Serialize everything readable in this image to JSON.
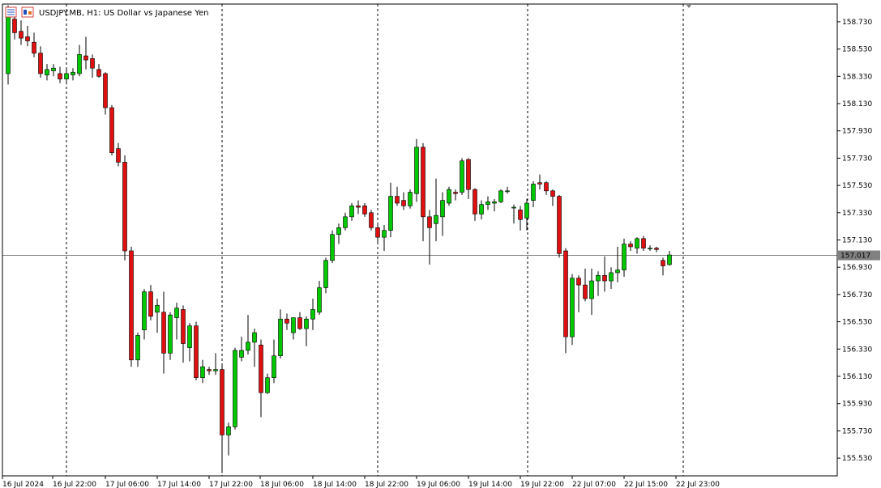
{
  "window": {
    "symbol": "USDJPY.MB",
    "timeframe": "H1:",
    "description": "US Dollar vs Japanese Yen",
    "icons": [
      "chart-list-icon",
      "chart-window-icon"
    ]
  },
  "colors": {
    "bull": "#00c800",
    "bear": "#e01010",
    "wick": "#000000",
    "grid": "#000000",
    "price_line": "#808080",
    "price_label_bg": "#808080",
    "price_label_text": "#ffffff"
  },
  "current_price": "157.017",
  "chart_data": {
    "type": "candlestick",
    "title": "USDJPY.MB, H1: US Dollar vs Japanese Yen",
    "y_ticks": [
      "158.730",
      "158.530",
      "158.330",
      "158.130",
      "157.930",
      "157.730",
      "157.530",
      "157.330",
      "157.130",
      "156.930",
      "156.730",
      "156.530",
      "156.330",
      "156.130",
      "155.930",
      "155.730",
      "155.530"
    ],
    "x_ticks": [
      "16 Jul 2024",
      "16 Jul 22:00",
      "17 Jul 06:00",
      "17 Jul 14:00",
      "17 Jul 22:00",
      "18 Jul 06:00",
      "18 Jul 14:00",
      "18 Jul 22:00",
      "19 Jul 06:00",
      "19 Jul 14:00",
      "19 Jul 22:00",
      "22 Jul 07:00",
      "22 Jul 15:00",
      "22 Jul 23:00"
    ],
    "period_separators": [
      "16 Jul 22:00",
      "17 Jul 22:00",
      "18 Jul 22:00",
      "19 Jul 22:00",
      "22 Jul 23:00"
    ],
    "ylim": [
      155.4,
      158.88
    ],
    "grid": false,
    "candles": [
      {
        "o": 158.35,
        "h": 158.85,
        "l": 158.27,
        "c": 158.77
      },
      {
        "o": 158.75,
        "h": 158.82,
        "l": 158.6,
        "c": 158.65
      },
      {
        "o": 158.66,
        "h": 158.74,
        "l": 158.56,
        "c": 158.61
      },
      {
        "o": 158.62,
        "h": 158.7,
        "l": 158.55,
        "c": 158.59
      },
      {
        "o": 158.58,
        "h": 158.65,
        "l": 158.47,
        "c": 158.5
      },
      {
        "o": 158.5,
        "h": 158.55,
        "l": 158.32,
        "c": 158.35
      },
      {
        "o": 158.34,
        "h": 158.42,
        "l": 158.3,
        "c": 158.38
      },
      {
        "o": 158.37,
        "h": 158.42,
        "l": 158.33,
        "c": 158.39
      },
      {
        "o": 158.35,
        "h": 158.4,
        "l": 158.28,
        "c": 158.31
      },
      {
        "o": 158.31,
        "h": 158.38,
        "l": 158.27,
        "c": 158.35
      },
      {
        "o": 158.34,
        "h": 158.39,
        "l": 158.3,
        "c": 158.36
      },
      {
        "o": 158.35,
        "h": 158.56,
        "l": 158.33,
        "c": 158.49
      },
      {
        "o": 158.48,
        "h": 158.62,
        "l": 158.38,
        "c": 158.45
      },
      {
        "o": 158.46,
        "h": 158.49,
        "l": 158.32,
        "c": 158.39
      },
      {
        "o": 158.38,
        "h": 158.42,
        "l": 158.32,
        "c": 158.33
      },
      {
        "o": 158.35,
        "h": 158.36,
        "l": 158.05,
        "c": 158.1
      },
      {
        "o": 158.1,
        "h": 158.12,
        "l": 157.75,
        "c": 157.77
      },
      {
        "o": 157.8,
        "h": 157.84,
        "l": 157.67,
        "c": 157.7
      },
      {
        "o": 157.7,
        "h": 157.75,
        "l": 156.98,
        "c": 157.05
      },
      {
        "o": 157.05,
        "h": 157.08,
        "l": 156.2,
        "c": 156.25
      },
      {
        "o": 156.25,
        "h": 156.45,
        "l": 156.2,
        "c": 156.43
      },
      {
        "o": 156.47,
        "h": 156.77,
        "l": 156.4,
        "c": 156.75
      },
      {
        "o": 156.75,
        "h": 156.8,
        "l": 156.54,
        "c": 156.57
      },
      {
        "o": 156.6,
        "h": 156.7,
        "l": 156.45,
        "c": 156.65
      },
      {
        "o": 156.6,
        "h": 156.75,
        "l": 156.15,
        "c": 156.3
      },
      {
        "o": 156.3,
        "h": 156.6,
        "l": 156.25,
        "c": 156.58
      },
      {
        "o": 156.56,
        "h": 156.67,
        "l": 156.4,
        "c": 156.63
      },
      {
        "o": 156.62,
        "h": 156.65,
        "l": 156.23,
        "c": 156.37
      },
      {
        "o": 156.34,
        "h": 156.52,
        "l": 156.24,
        "c": 156.5
      },
      {
        "o": 156.5,
        "h": 156.53,
        "l": 156.1,
        "c": 156.12
      },
      {
        "o": 156.12,
        "h": 156.25,
        "l": 156.08,
        "c": 156.2
      },
      {
        "o": 156.18,
        "h": 156.2,
        "l": 156.14,
        "c": 156.17
      },
      {
        "o": 156.17,
        "h": 156.3,
        "l": 156.14,
        "c": 156.18
      },
      {
        "o": 156.18,
        "h": 156.21,
        "l": 155.42,
        "c": 155.7
      },
      {
        "o": 155.7,
        "h": 155.79,
        "l": 155.55,
        "c": 155.76
      },
      {
        "o": 155.76,
        "h": 156.34,
        "l": 155.74,
        "c": 156.32
      },
      {
        "o": 156.27,
        "h": 156.42,
        "l": 156.24,
        "c": 156.32
      },
      {
        "o": 156.32,
        "h": 156.58,
        "l": 156.29,
        "c": 156.38
      },
      {
        "o": 156.38,
        "h": 156.48,
        "l": 156.2,
        "c": 156.45
      },
      {
        "o": 156.36,
        "h": 156.4,
        "l": 155.83,
        "c": 156.01
      },
      {
        "o": 156.01,
        "h": 156.15,
        "l": 156.0,
        "c": 156.12
      },
      {
        "o": 156.12,
        "h": 156.4,
        "l": 156.08,
        "c": 156.28
      },
      {
        "o": 156.28,
        "h": 156.62,
        "l": 156.26,
        "c": 156.55
      },
      {
        "o": 156.55,
        "h": 156.59,
        "l": 156.47,
        "c": 156.52
      },
      {
        "o": 156.45,
        "h": 156.56,
        "l": 156.4,
        "c": 156.56
      },
      {
        "o": 156.56,
        "h": 156.6,
        "l": 156.47,
        "c": 156.48
      },
      {
        "o": 156.48,
        "h": 156.57,
        "l": 156.35,
        "c": 156.55
      },
      {
        "o": 156.55,
        "h": 156.7,
        "l": 156.47,
        "c": 156.62
      },
      {
        "o": 156.6,
        "h": 156.83,
        "l": 156.58,
        "c": 156.78
      },
      {
        "o": 156.78,
        "h": 157.0,
        "l": 156.74,
        "c": 156.98
      },
      {
        "o": 156.98,
        "h": 157.2,
        "l": 156.96,
        "c": 157.17
      },
      {
        "o": 157.17,
        "h": 157.25,
        "l": 157.1,
        "c": 157.22
      },
      {
        "o": 157.22,
        "h": 157.33,
        "l": 157.2,
        "c": 157.3
      },
      {
        "o": 157.3,
        "h": 157.4,
        "l": 157.27,
        "c": 157.38
      },
      {
        "o": 157.38,
        "h": 157.42,
        "l": 157.32,
        "c": 157.37
      },
      {
        "o": 157.38,
        "h": 157.4,
        "l": 157.3,
        "c": 157.32
      },
      {
        "o": 157.33,
        "h": 157.35,
        "l": 157.2,
        "c": 157.22
      },
      {
        "o": 157.22,
        "h": 157.24,
        "l": 157.1,
        "c": 157.15
      },
      {
        "o": 157.15,
        "h": 157.24,
        "l": 157.05,
        "c": 157.2
      },
      {
        "o": 157.2,
        "h": 157.55,
        "l": 157.15,
        "c": 157.45
      },
      {
        "o": 157.45,
        "h": 157.52,
        "l": 157.38,
        "c": 157.4
      },
      {
        "o": 157.42,
        "h": 157.48,
        "l": 157.35,
        "c": 157.38
      },
      {
        "o": 157.38,
        "h": 157.5,
        "l": 157.36,
        "c": 157.48
      },
      {
        "o": 157.47,
        "h": 157.87,
        "l": 157.41,
        "c": 157.81
      },
      {
        "o": 157.81,
        "h": 157.84,
        "l": 157.12,
        "c": 157.3
      },
      {
        "o": 157.3,
        "h": 157.35,
        "l": 156.95,
        "c": 157.22
      },
      {
        "o": 157.25,
        "h": 157.58,
        "l": 157.12,
        "c": 157.31
      },
      {
        "o": 157.3,
        "h": 157.48,
        "l": 157.16,
        "c": 157.42
      },
      {
        "o": 157.4,
        "h": 157.52,
        "l": 157.38,
        "c": 157.5
      },
      {
        "o": 157.48,
        "h": 157.5,
        "l": 157.42,
        "c": 157.47
      },
      {
        "o": 157.48,
        "h": 157.73,
        "l": 157.46,
        "c": 157.71
      },
      {
        "o": 157.72,
        "h": 157.73,
        "l": 157.43,
        "c": 157.5
      },
      {
        "o": 157.5,
        "h": 157.51,
        "l": 157.27,
        "c": 157.32
      },
      {
        "o": 157.32,
        "h": 157.42,
        "l": 157.28,
        "c": 157.39
      },
      {
        "o": 157.39,
        "h": 157.45,
        "l": 157.35,
        "c": 157.41
      },
      {
        "o": 157.4,
        "h": 157.43,
        "l": 157.34,
        "c": 157.41
      },
      {
        "o": 157.41,
        "h": 157.5,
        "l": 157.4,
        "c": 157.49
      },
      {
        "o": 157.49,
        "h": 157.52,
        "l": 157.47,
        "c": 157.49
      },
      {
        "o": 157.37,
        "h": 157.39,
        "l": 157.25,
        "c": 157.37
      },
      {
        "o": 157.35,
        "h": 157.38,
        "l": 157.2,
        "c": 157.28
      },
      {
        "o": 157.29,
        "h": 157.43,
        "l": 157.2,
        "c": 157.4
      },
      {
        "o": 157.42,
        "h": 157.56,
        "l": 157.37,
        "c": 157.54
      },
      {
        "o": 157.55,
        "h": 157.61,
        "l": 157.5,
        "c": 157.54
      },
      {
        "o": 157.55,
        "h": 157.56,
        "l": 157.46,
        "c": 157.49
      },
      {
        "o": 157.49,
        "h": 157.5,
        "l": 157.38,
        "c": 157.45
      },
      {
        "o": 157.45,
        "h": 157.46,
        "l": 157.0,
        "c": 157.03
      },
      {
        "o": 157.05,
        "h": 157.07,
        "l": 156.3,
        "c": 156.42
      },
      {
        "o": 156.42,
        "h": 156.88,
        "l": 156.36,
        "c": 156.85
      },
      {
        "o": 156.85,
        "h": 156.87,
        "l": 156.6,
        "c": 156.8
      },
      {
        "o": 156.8,
        "h": 156.92,
        "l": 156.68,
        "c": 156.7
      },
      {
        "o": 156.7,
        "h": 156.92,
        "l": 156.58,
        "c": 156.83
      },
      {
        "o": 156.83,
        "h": 156.9,
        "l": 156.72,
        "c": 156.87
      },
      {
        "o": 156.87,
        "h": 157.01,
        "l": 156.75,
        "c": 156.83
      },
      {
        "o": 156.83,
        "h": 156.93,
        "l": 156.77,
        "c": 156.89
      },
      {
        "o": 156.89,
        "h": 157.08,
        "l": 156.82,
        "c": 156.91
      },
      {
        "o": 156.91,
        "h": 157.14,
        "l": 156.86,
        "c": 157.1
      },
      {
        "o": 157.1,
        "h": 157.12,
        "l": 157.05,
        "c": 157.08
      },
      {
        "o": 157.07,
        "h": 157.15,
        "l": 157.03,
        "c": 157.14
      },
      {
        "o": 157.14,
        "h": 157.16,
        "l": 157.05,
        "c": 157.07
      },
      {
        "o": 157.07,
        "h": 157.09,
        "l": 157.05,
        "c": 157.07
      },
      {
        "o": 157.07,
        "h": 157.08,
        "l": 157.04,
        "c": 157.06
      },
      {
        "o": 156.98,
        "h": 157.0,
        "l": 156.87,
        "c": 156.94
      },
      {
        "o": 156.95,
        "h": 157.05,
        "l": 156.94,
        "c": 157.02
      }
    ]
  }
}
